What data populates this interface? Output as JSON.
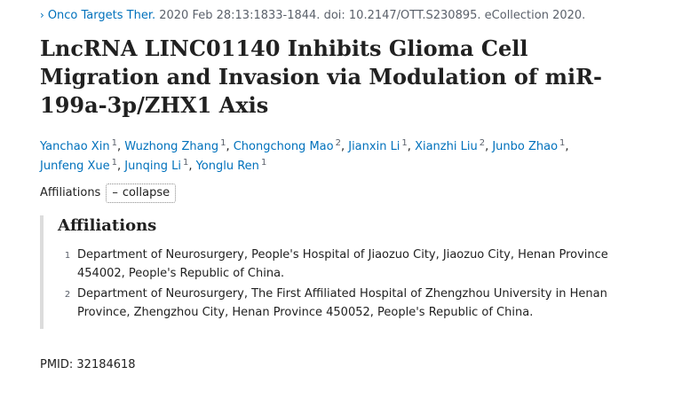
{
  "citation": {
    "chevron": "›",
    "journal": "Onco Targets Ther.",
    "details": " 2020 Feb 28:13:1833-1844. doi: 10.2147/OTT.S230895. eCollection 2020."
  },
  "title": "LncRNA LINC01140 Inhibits Glioma Cell Migration and Invasion via Modulation of miR-199a-3p/ZHX1 Axis",
  "authors": [
    {
      "name": "Yanchao Xin",
      "aff": "1"
    },
    {
      "name": "Wuzhong Zhang",
      "aff": "1"
    },
    {
      "name": "Chongchong Mao",
      "aff": "2"
    },
    {
      "name": "Jianxin Li",
      "aff": "1"
    },
    {
      "name": "Xianzhi Liu",
      "aff": "2"
    },
    {
      "name": "Junbo Zhao",
      "aff": "1"
    },
    {
      "name": "Junfeng Xue",
      "aff": "1"
    },
    {
      "name": "Junqing Li",
      "aff": "1"
    },
    {
      "name": "Yonglu Ren",
      "aff": "1"
    }
  ],
  "affiliations_toggle": {
    "label": "Affiliations",
    "button_symbol": "–",
    "button_label": "collapse"
  },
  "affiliations": {
    "heading": "Affiliations",
    "items": [
      {
        "num": "1",
        "text": "Department of Neurosurgery, People's Hospital of Jiaozuo City, Jiaozuo City, Henan Province 454002, People's Republic of China."
      },
      {
        "num": "2",
        "text": "Department of Neurosurgery, The First Affiliated Hospital of Zhengzhou University in Henan Province, Zhengzhou City, Henan Province 450052, People's Republic of China."
      }
    ]
  },
  "pmid": "PMID: 32184618"
}
